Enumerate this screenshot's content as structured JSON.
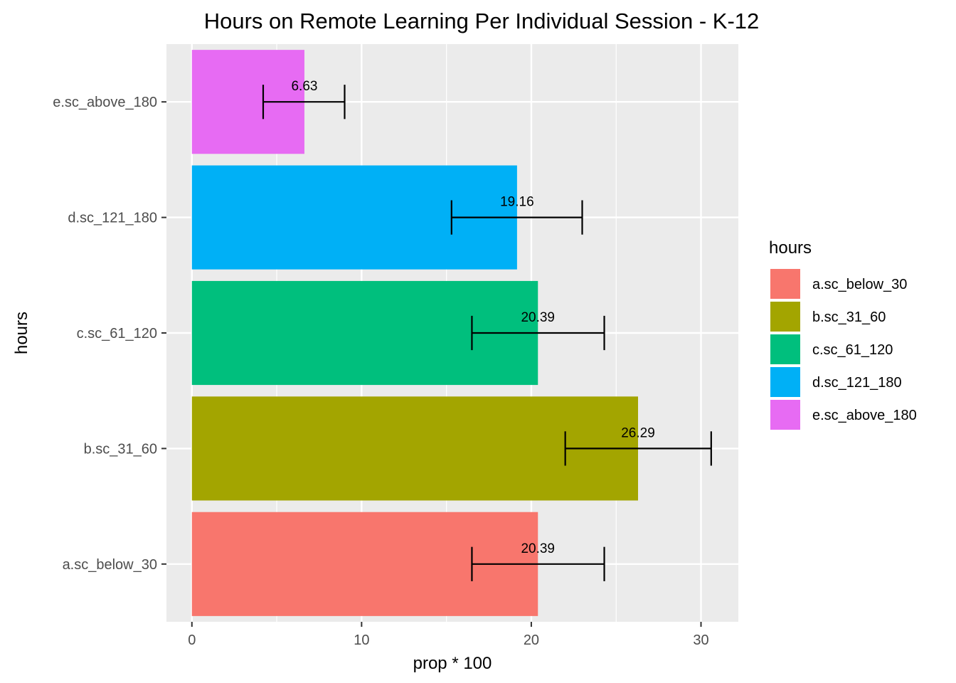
{
  "chart_data": {
    "type": "bar",
    "orientation": "horizontal",
    "title": "Hours on Remote Learning Per Individual Session - K-12",
    "xlabel": "prop * 100",
    "ylabel": "hours",
    "categories": [
      "a.sc_below_30",
      "b.sc_31_60",
      "c.sc_61_120",
      "d.sc_121_180",
      "e.sc_above_180"
    ],
    "values": [
      20.39,
      26.29,
      20.39,
      19.16,
      6.63
    ],
    "data_labels": [
      "20.39",
      "26.29",
      "20.39",
      "19.16",
      "6.63"
    ],
    "error_low": [
      16.5,
      22.0,
      16.5,
      15.3,
      4.2
    ],
    "error_high": [
      24.3,
      30.6,
      24.3,
      23.0,
      9.0
    ],
    "colors": [
      "#F8766D",
      "#A3A500",
      "#00BF7D",
      "#00B0F6",
      "#E76BF3"
    ],
    "xlim": [
      -1.5,
      32.2
    ],
    "xticks": [
      0,
      10,
      20,
      30
    ],
    "xtick_labels": [
      "0",
      "10",
      "20",
      "30"
    ],
    "grid": true,
    "panel_background": "#EBEBEB",
    "legend": {
      "title": "hours",
      "position": "right",
      "items": [
        "a.sc_below_30",
        "b.sc_31_60",
        "c.sc_61_120",
        "d.sc_121_180",
        "e.sc_above_180"
      ]
    }
  }
}
